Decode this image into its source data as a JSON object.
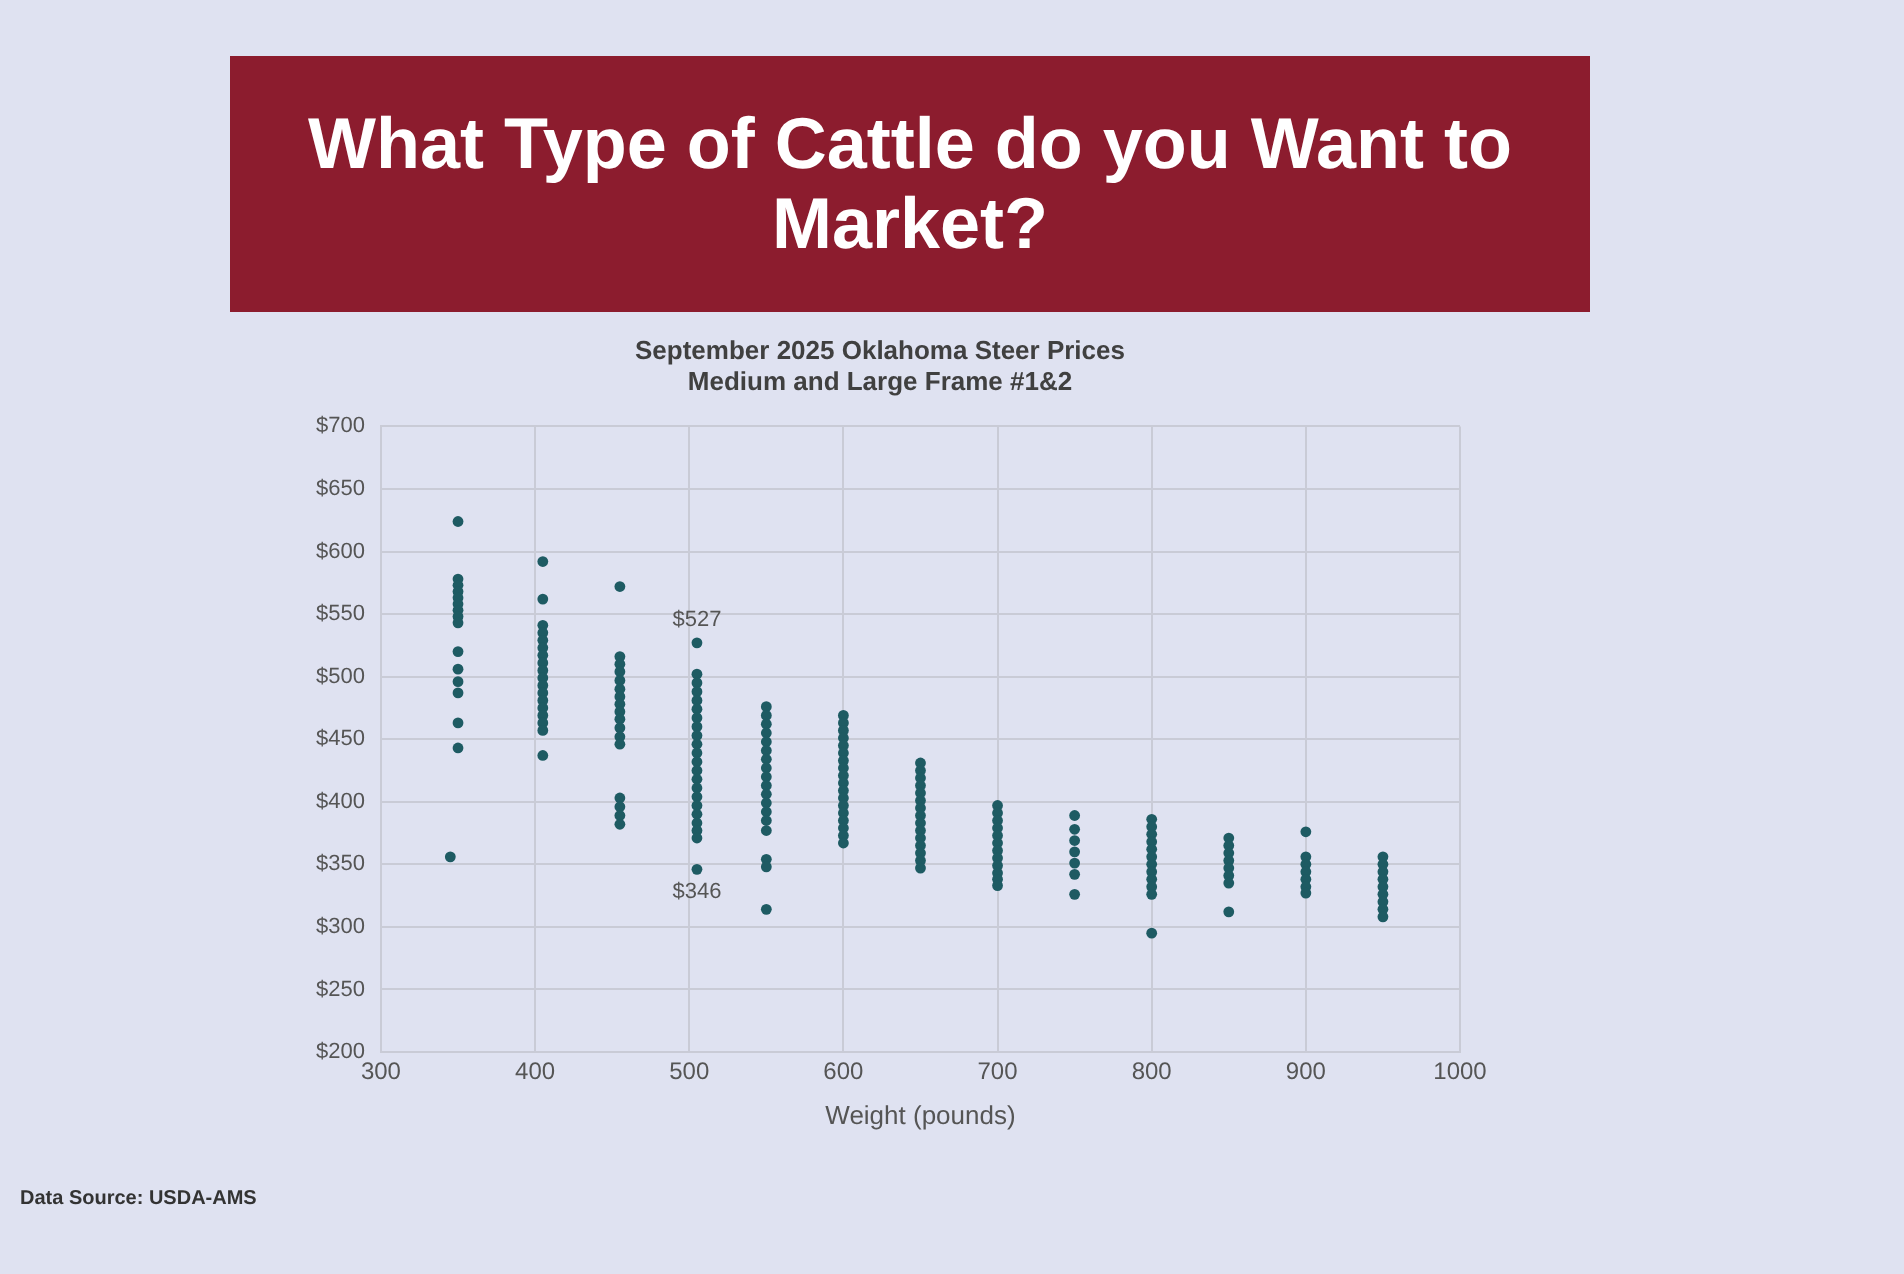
{
  "chart_data": {
    "type": "scatter",
    "title": "What Type of Cattle do you Want to Market?",
    "subtitle": "September 2025 Oklahoma Steer Prices\nMedium and Large Frame #1&2",
    "xlabel": "Weight (pounds)",
    "x": [
      350,
      350,
      350,
      350,
      350,
      350,
      350,
      350,
      350,
      350,
      350,
      350,
      350,
      350,
      350,
      345,
      405,
      405,
      405,
      405,
      405,
      405,
      405,
      405,
      405,
      405,
      405,
      405,
      405,
      405,
      405,
      405,
      405,
      405,
      455,
      455,
      455,
      455,
      455,
      455,
      455,
      455,
      455,
      455,
      455,
      455,
      455,
      455,
      455,
      455,
      455,
      505,
      505,
      505,
      505,
      505,
      505,
      505,
      505,
      505,
      505,
      505,
      505,
      505,
      505,
      505,
      505,
      505,
      505,
      505,
      505,
      505,
      505,
      550,
      550,
      550,
      550,
      550,
      550,
      550,
      550,
      550,
      550,
      550,
      550,
      550,
      550,
      550,
      550,
      550,
      550,
      600,
      600,
      600,
      600,
      600,
      600,
      600,
      600,
      600,
      600,
      600,
      600,
      600,
      600,
      600,
      600,
      600,
      600,
      650,
      650,
      650,
      650,
      650,
      650,
      650,
      650,
      650,
      650,
      650,
      650,
      650,
      650,
      650,
      700,
      700,
      700,
      700,
      700,
      700,
      700,
      700,
      700,
      700,
      700,
      700,
      750,
      750,
      750,
      750,
      750,
      750,
      750,
      800,
      800,
      800,
      800,
      800,
      800,
      800,
      800,
      800,
      800,
      800,
      800,
      850,
      850,
      850,
      850,
      850,
      850,
      850,
      850,
      900,
      900,
      900,
      900,
      900,
      900,
      900,
      950,
      950,
      950,
      950,
      950,
      950,
      950,
      950,
      950
    ],
    "values": [
      624,
      578,
      573,
      568,
      563,
      558,
      553,
      548,
      543,
      520,
      506,
      496,
      487,
      463,
      443,
      356,
      592,
      562,
      541,
      535,
      529,
      523,
      517,
      511,
      505,
      499,
      493,
      487,
      481,
      475,
      469,
      463,
      457,
      437,
      572,
      516,
      510,
      504,
      497,
      490,
      484,
      478,
      472,
      466,
      459,
      452,
      446,
      403,
      396,
      389,
      382,
      527,
      502,
      495,
      488,
      481,
      474,
      467,
      460,
      453,
      446,
      439,
      432,
      425,
      418,
      411,
      404,
      397,
      390,
      383,
      377,
      371,
      346,
      476,
      469,
      462,
      455,
      448,
      441,
      434,
      427,
      420,
      413,
      406,
      399,
      392,
      385,
      377,
      354,
      348,
      314,
      469,
      463,
      457,
      451,
      445,
      439,
      433,
      427,
      421,
      415,
      409,
      403,
      397,
      391,
      385,
      379,
      373,
      367,
      431,
      425,
      419,
      413,
      407,
      401,
      395,
      389,
      383,
      377,
      371,
      365,
      359,
      353,
      347,
      397,
      391,
      385,
      379,
      373,
      367,
      361,
      355,
      349,
      343,
      338,
      333,
      389,
      378,
      369,
      360,
      351,
      342,
      326,
      386,
      380,
      374,
      368,
      362,
      356,
      350,
      344,
      338,
      332,
      326,
      295,
      371,
      365,
      359,
      353,
      347,
      341,
      335,
      312,
      376,
      356,
      350,
      344,
      338,
      332,
      327,
      356,
      350,
      344,
      338,
      332,
      326,
      320,
      314,
      308
    ],
    "color": "#1e5b63",
    "marker": "circle",
    "xlim": [
      300,
      1000
    ],
    "xticks": [
      300,
      400,
      500,
      600,
      700,
      800,
      900,
      1000
    ],
    "ylim": [
      200,
      700
    ],
    "yticks": [
      {
        "value": 200,
        "label": "$200"
      },
      {
        "value": 250,
        "label": "$250"
      },
      {
        "value": 300,
        "label": "$300"
      },
      {
        "value": 350,
        "label": "$350"
      },
      {
        "value": 400,
        "label": "$400"
      },
      {
        "value": 450,
        "label": "$450"
      },
      {
        "value": 500,
        "label": "$500"
      },
      {
        "value": 550,
        "label": "$550"
      },
      {
        "value": 600,
        "label": "$600"
      },
      {
        "value": 650,
        "label": "$650"
      },
      {
        "value": 700,
        "label": "$700"
      }
    ],
    "grid": true,
    "annotations": [
      {
        "text": "$527",
        "x": 505,
        "y": 527
      },
      {
        "text": "$346",
        "x": 505,
        "y": 346
      },
      "Data Source: USDA-AMS"
    ]
  }
}
